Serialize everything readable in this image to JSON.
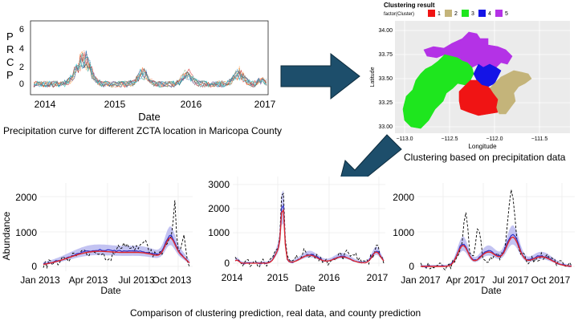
{
  "top_left": {
    "ylabel_letters": [
      "P",
      "R",
      "C",
      "P"
    ],
    "yticks": [
      "6",
      "4",
      "2",
      "0"
    ],
    "xticks": [
      "2014",
      "2015",
      "2016",
      "2017"
    ],
    "xlabel": "Date",
    "caption": "Precipitation curve for different ZCTA location in Maricopa County"
  },
  "cluster_map": {
    "title": "Clustering result",
    "legend_label": "factor(Cluster)",
    "legend": [
      {
        "label": "1",
        "color": "#f01414"
      },
      {
        "label": "2",
        "color": "#c4b47a"
      },
      {
        "label": "3",
        "color": "#1ee61e"
      },
      {
        "label": "4",
        "color": "#1414e6"
      },
      {
        "label": "5",
        "color": "#b432e6"
      }
    ],
    "ylabel": "Latitude",
    "yticks": [
      "34.00",
      "33.75",
      "33.50",
      "33.25",
      "33.00"
    ],
    "xlabel": "Longitude",
    "xticks": [
      "−113.0",
      "−112.5",
      "−112.0",
      "−111.5"
    ],
    "caption": "Clustering based on precipitation data"
  },
  "bottom": {
    "ylabel": "Abundance",
    "left": {
      "yticks": [
        "2000",
        "1000",
        "0"
      ],
      "xticks": [
        "Jan 2013",
        "Apr 2013",
        "Jul 2013",
        "Oct 2013"
      ],
      "xlabel": "Date"
    },
    "middle": {
      "yticks": [
        "3000",
        "2000",
        "1000",
        "0"
      ],
      "xticks": [
        "2014",
        "2015",
        "2016",
        "2017"
      ],
      "xlabel": "Date"
    },
    "right": {
      "yticks": [
        "2000",
        "1000",
        "0"
      ],
      "xticks": [
        "Jan 2017",
        "Apr 2017",
        "Jul 2017",
        "Oct 2017"
      ],
      "xlabel": "Date"
    },
    "caption": "Comparison of clustering prediction, real data, and county prediction"
  },
  "colors": {
    "arrow": "#1d4e6b",
    "band": "#b8b8f0",
    "pred_red": "#e0262a",
    "pred_blue": "#3030c8"
  }
}
